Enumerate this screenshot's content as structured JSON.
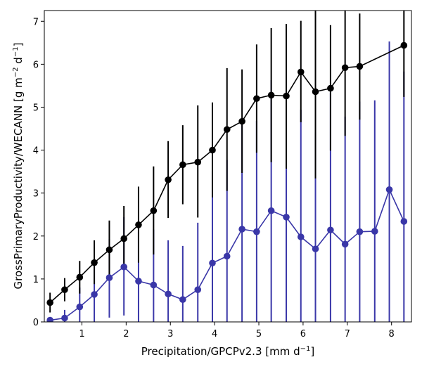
{
  "chart_data": {
    "type": "line",
    "title": "",
    "xlabel": "Precipitation/GPCPv2.3 [mm d",
    "xlabel_sup": "−1",
    "xlabel_end": "]",
    "ylabel": "GrossPrimaryProductivity/WECANN [g m",
    "ylabel_sup1": "−2",
    "ylabel_mid": " d",
    "ylabel_sup2": "−1",
    "ylabel_end": "]",
    "xlim": [
      0.15,
      8.45
    ],
    "ylim": [
      0,
      7.25
    ],
    "xticks": [
      1,
      2,
      3,
      4,
      5,
      6,
      7,
      8
    ],
    "yticks": [
      0,
      1,
      2,
      3,
      4,
      5,
      6,
      7
    ],
    "grid": false,
    "series": [
      {
        "color": "#000000",
        "errorbar_color": "#000000",
        "marker": "circle",
        "x": [
          0.28,
          0.61,
          0.95,
          1.28,
          1.62,
          1.95,
          2.28,
          2.62,
          2.95,
          3.28,
          3.62,
          3.95,
          4.28,
          4.62,
          4.95,
          5.28,
          5.62,
          5.95,
          6.28,
          6.62,
          6.95,
          7.28,
          8.28
        ],
        "y": [
          0.45,
          0.75,
          1.04,
          1.38,
          1.68,
          1.94,
          2.26,
          2.59,
          3.31,
          3.66,
          3.72,
          4.0,
          4.48,
          4.67,
          5.2,
          5.28,
          5.26,
          5.82,
          5.36,
          5.44,
          5.92,
          5.95,
          6.44
        ],
        "y_err_low": [
          0.22,
          0.48,
          0.66,
          0.88,
          1.08,
          1.22,
          1.38,
          1.57,
          2.42,
          2.74,
          2.43,
          2.9,
          3.05,
          3.47,
          3.94,
          3.72,
          3.57,
          4.65,
          3.34,
          3.99,
          4.33,
          4.71,
          5.24
        ],
        "y_err_high": [
          0.68,
          1.02,
          1.42,
          1.9,
          2.36,
          2.7,
          3.15,
          3.62,
          4.21,
          4.58,
          5.04,
          5.11,
          5.91,
          5.88,
          6.46,
          6.84,
          6.94,
          7.01,
          7.4,
          6.91,
          7.4,
          7.18,
          7.4
        ]
      },
      {
        "color": "#3a37a8",
        "errorbar_color": "#3a37a8",
        "marker": "circle",
        "x": [
          0.28,
          0.61,
          0.95,
          1.28,
          1.62,
          1.95,
          2.28,
          2.62,
          2.95,
          3.28,
          3.62,
          3.95,
          4.28,
          4.62,
          4.95,
          5.28,
          5.62,
          5.95,
          6.28,
          6.62,
          6.95,
          7.28,
          7.62,
          7.95,
          8.28
        ],
        "y": [
          0.04,
          0.09,
          0.35,
          0.64,
          1.03,
          1.28,
          0.95,
          0.86,
          0.65,
          0.52,
          0.75,
          1.37,
          1.53,
          2.16,
          2.1,
          2.59,
          2.44,
          1.98,
          1.7,
          2.14,
          1.81,
          2.1,
          2.11,
          3.08,
          2.34
        ],
        "y_err_low": [
          0.0,
          0.0,
          0.0,
          0.0,
          0.1,
          0.15,
          0.0,
          0.0,
          0.0,
          0.0,
          0.0,
          0.0,
          0.0,
          0.0,
          0.0,
          0.0,
          0.0,
          0.0,
          0.0,
          0.0,
          0.0,
          0.0,
          0.0,
          0.0,
          0.0
        ],
        "y_err_high": [
          0.1,
          0.28,
          0.8,
          1.3,
          1.93,
          2.44,
          2.1,
          2.15,
          1.9,
          1.77,
          2.31,
          3.51,
          3.77,
          4.62,
          4.68,
          5.63,
          5.61,
          4.94,
          4.41,
          5.33,
          4.78,
          5.13,
          5.16,
          6.53,
          5.83
        ]
      }
    ]
  }
}
